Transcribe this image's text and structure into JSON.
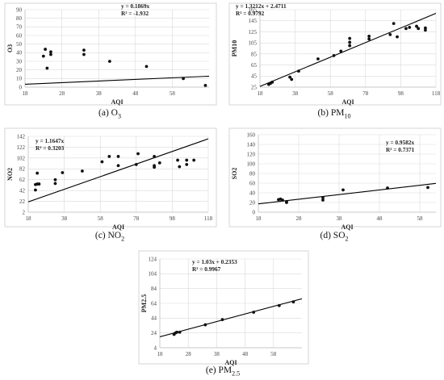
{
  "chart_data": [
    {
      "id": "o3",
      "type": "scatter",
      "caption_letter": "(a)",
      "caption_base": "O",
      "caption_sub": "3",
      "xlabel": "AQI",
      "ylabel": "O3",
      "xlim": [
        18,
        68
      ],
      "ylim": [
        0,
        90
      ],
      "xticks": [
        18,
        28,
        38,
        48,
        58
      ],
      "yticks": [
        0,
        10,
        20,
        30,
        40,
        50,
        60,
        70,
        80,
        90
      ],
      "equation": "y = 0.1869x",
      "r2": "R² = -1.932",
      "trend": {
        "slope": 0.1869,
        "intercept": 0
      },
      "points": [
        [
          23,
          36
        ],
        [
          23.5,
          44
        ],
        [
          24,
          22
        ],
        [
          25,
          41
        ],
        [
          25,
          38
        ],
        [
          34,
          43
        ],
        [
          34,
          38
        ],
        [
          41,
          30
        ],
        [
          51,
          24
        ],
        [
          61,
          10
        ],
        [
          67,
          2
        ]
      ]
    },
    {
      "id": "pm10",
      "type": "scatter",
      "caption_letter": "(b)",
      "caption_base": "PM",
      "caption_sub": "10",
      "xlabel": "AQI",
      "ylabel": "PM10",
      "xlim": [
        18,
        118
      ],
      "ylim": [
        25,
        165
      ],
      "xticks": [
        18,
        38,
        58,
        78,
        98,
        118
      ],
      "yticks": [
        25,
        45,
        65,
        85,
        105,
        125,
        145,
        165
      ],
      "equation": "y = 1.3212x + 2.4711",
      "r2": "R² = 0.9792",
      "trend": {
        "slope": 1.3212,
        "intercept": 2.4711
      },
      "points": [
        [
          23,
          30
        ],
        [
          24,
          32
        ],
        [
          25,
          34
        ],
        [
          35,
          43
        ],
        [
          36,
          39
        ],
        [
          40,
          54
        ],
        [
          51,
          76
        ],
        [
          60,
          82
        ],
        [
          64,
          90
        ],
        [
          69,
          100
        ],
        [
          69,
          106
        ],
        [
          69,
          113
        ],
        [
          80,
          112
        ],
        [
          80,
          117
        ],
        [
          92,
          120
        ],
        [
          94,
          140
        ],
        [
          96,
          116
        ],
        [
          101,
          131
        ],
        [
          103,
          133
        ],
        [
          107,
          135
        ],
        [
          108,
          131
        ],
        [
          112,
          128
        ],
        [
          112,
          132
        ]
      ]
    },
    {
      "id": "no2",
      "type": "scatter",
      "caption_letter": "(c)",
      "caption_base": "NO",
      "caption_sub": "2",
      "xlabel": "AQI",
      "ylabel": "NO2",
      "xlim": [
        18,
        118
      ],
      "ylim": [
        2,
        142
      ],
      "xticks": [
        18,
        38,
        58,
        78,
        98,
        118
      ],
      "yticks": [
        2,
        22,
        42,
        62,
        82,
        102,
        122,
        142
      ],
      "equation": "y = 1.1647x",
      "r2": "R² = 0.3203",
      "trend": {
        "slope": 1.1647,
        "intercept": 0
      },
      "points": [
        [
          22,
          43
        ],
        [
          22,
          53
        ],
        [
          23,
          54
        ],
        [
          23,
          74
        ],
        [
          24,
          54
        ],
        [
          33,
          55
        ],
        [
          33,
          62
        ],
        [
          37,
          75
        ],
        [
          48,
          78
        ],
        [
          59,
          95
        ],
        [
          63,
          105
        ],
        [
          68,
          88
        ],
        [
          68,
          105
        ],
        [
          78,
          90
        ],
        [
          79,
          110
        ],
        [
          88,
          85
        ],
        [
          88,
          88
        ],
        [
          88,
          105
        ],
        [
          91,
          93
        ],
        [
          101,
          98
        ],
        [
          102,
          86
        ],
        [
          106,
          90
        ],
        [
          106,
          98
        ],
        [
          110,
          98
        ]
      ]
    },
    {
      "id": "so2",
      "type": "scatter",
      "caption_letter": "(d)",
      "caption_base": "SO",
      "caption_sub": "2",
      "xlabel": "AQI",
      "ylabel": "SO2",
      "xlim": [
        18,
        62
      ],
      "ylim": [
        0,
        160
      ],
      "xticks": [
        18,
        28,
        38,
        48,
        58
      ],
      "yticks": [
        0,
        20,
        40,
        60,
        80,
        100,
        120,
        140,
        160
      ],
      "equation": "y = 0.9582x",
      "r2": "R² = 0.7371",
      "trend": {
        "slope": 0.9582,
        "intercept": 0
      },
      "points": [
        [
          23,
          26
        ],
        [
          23.5,
          27
        ],
        [
          24,
          25
        ],
        [
          25,
          22
        ],
        [
          25,
          20
        ],
        [
          34,
          25
        ],
        [
          34,
          30
        ],
        [
          39,
          46
        ],
        [
          50,
          50
        ],
        [
          60,
          51
        ]
      ]
    },
    {
      "id": "pm25",
      "type": "scatter",
      "caption_letter": "(e)",
      "caption_base": "PM",
      "caption_sub": "2.5",
      "xlabel": "AQI",
      "ylabel": "PM2.5",
      "xlim": [
        18,
        68
      ],
      "ylim": [
        4,
        124
      ],
      "xticks": [
        18,
        28,
        38,
        48,
        58
      ],
      "yticks": [
        4,
        24,
        44,
        64,
        84,
        104,
        124
      ],
      "equation": "y = 1.03x + 0.2353",
      "r2": "R² = 0.9967",
      "trend": {
        "slope": 1.03,
        "intercept": 0.2353
      },
      "points": [
        [
          23,
          22
        ],
        [
          23.5,
          24
        ],
        [
          24,
          25
        ],
        [
          25,
          25
        ],
        [
          34,
          35
        ],
        [
          40,
          42
        ],
        [
          51,
          52
        ],
        [
          60,
          61
        ],
        [
          65,
          66
        ]
      ]
    }
  ]
}
